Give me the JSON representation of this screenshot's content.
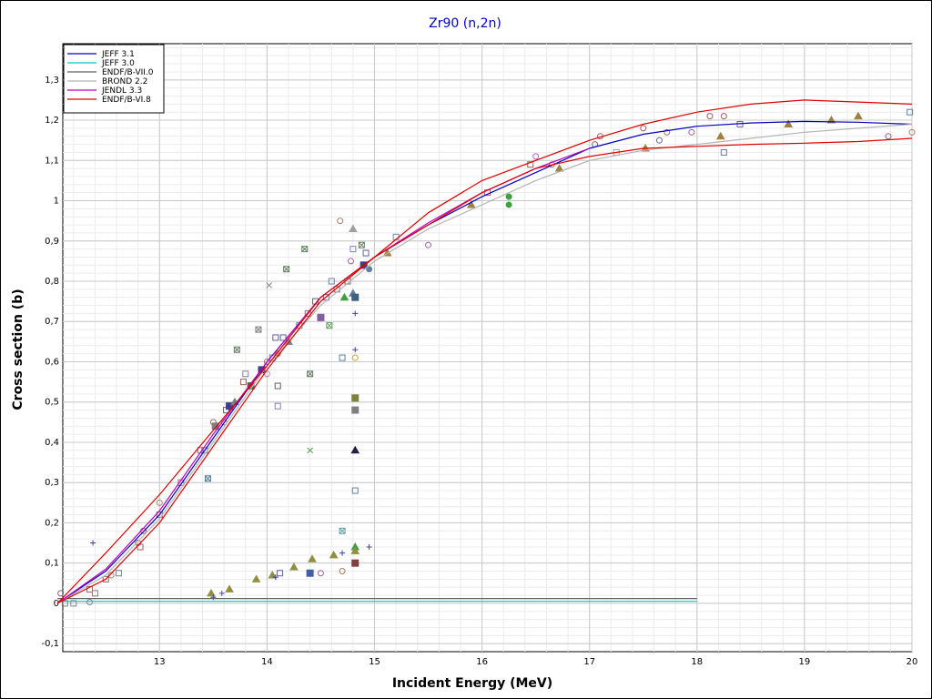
{
  "chart_data": {
    "type": "line",
    "title": "Zr90 (n,2n)",
    "xlabel": "Incident Energy (MeV)",
    "ylabel": "Cross section (b)",
    "xlim": [
      12.1,
      20
    ],
    "ylim": [
      -0.12,
      1.39
    ],
    "x_ticks": [
      "13",
      "14",
      "15",
      "16",
      "17",
      "18",
      "19",
      "20"
    ],
    "x_tick_values": [
      13,
      14,
      15,
      16,
      17,
      18,
      19,
      20
    ],
    "y_ticks": [
      "-0,1",
      "0",
      "0,1",
      "0,2",
      "0,3",
      "0,4",
      "0,5",
      "0,6",
      "0,7",
      "0,8",
      "0,9",
      "1",
      "1,1",
      "1,2",
      "1,3"
    ],
    "y_tick_values": [
      -0.1,
      0,
      0.1,
      0.2,
      0.3,
      0.4,
      0.5,
      0.6,
      0.7,
      0.8,
      0.9,
      1.0,
      1.1,
      1.2,
      1.3
    ],
    "grid": true,
    "legend_position": "top-left",
    "series": [
      {
        "name": "JEFF 3.1",
        "color": "#0000c0",
        "x": [
          12.05,
          12.5,
          13.0,
          13.5,
          14.0,
          14.5,
          15.0,
          15.5,
          16.0,
          16.5,
          17.0,
          17.5,
          18.0,
          18.5,
          19.0,
          19.5,
          20.0
        ],
        "y": [
          0.0,
          0.08,
          0.22,
          0.41,
          0.6,
          0.76,
          0.86,
          0.94,
          1.01,
          1.07,
          1.13,
          1.165,
          1.185,
          1.193,
          1.197,
          1.195,
          1.19
        ]
      },
      {
        "name": "JEFF 3.0",
        "color": "#00c8c8",
        "x": [
          12.05,
          18.0
        ],
        "y": [
          0.005,
          0.005
        ]
      },
      {
        "name": "ENDF/B-VII.0",
        "color": "#606060",
        "x": [
          12.05,
          18.0
        ],
        "y": [
          0.012,
          0.012
        ]
      },
      {
        "name": "BROND 2.2",
        "color": "#b4b4b4",
        "x": [
          12.05,
          12.5,
          13.0,
          13.5,
          14.0,
          14.5,
          15.0,
          15.5,
          16.0,
          16.5,
          17.0,
          17.5,
          18.0,
          18.5,
          19.0,
          19.5,
          20.0
        ],
        "y": [
          0.0,
          0.07,
          0.21,
          0.4,
          0.59,
          0.74,
          0.85,
          0.93,
          0.99,
          1.05,
          1.1,
          1.125,
          1.14,
          1.155,
          1.17,
          1.18,
          1.19
        ]
      },
      {
        "name": "JENDL 3.3",
        "color": "#c000c0",
        "x": [
          12.05,
          12.5,
          13.0,
          13.5,
          14.0,
          14.5,
          15.0,
          15.5,
          16.0,
          16.5,
          17.0
        ],
        "y": [
          0.0,
          0.085,
          0.23,
          0.42,
          0.6,
          0.76,
          0.86,
          0.945,
          1.02,
          1.08,
          1.13
        ]
      },
      {
        "name": "ENDF/B-VI.8",
        "color": "#e00000",
        "x": [
          12.05,
          12.5,
          13.0,
          13.5,
          14.0,
          14.5,
          15.0,
          15.5,
          16.0,
          16.5,
          17.0,
          17.5,
          18.0,
          18.5,
          19.0,
          19.5,
          20.0
        ],
        "y": [
          0.0,
          0.125,
          0.27,
          0.43,
          0.59,
          0.76,
          0.86,
          0.97,
          1.05,
          1.1,
          1.15,
          1.19,
          1.22,
          1.24,
          1.25,
          1.245,
          1.24
        ]
      },
      {
        "name": "",
        "color": "#e00000",
        "x": [
          12.05,
          12.5,
          13.0,
          13.5,
          14.0,
          14.5,
          15.0,
          15.5,
          16.0,
          16.5,
          17.0,
          17.5,
          18.0,
          18.5,
          19.0,
          19.5,
          20.0
        ],
        "y": [
          0.0,
          0.06,
          0.2,
          0.39,
          0.58,
          0.75,
          0.86,
          0.94,
          1.02,
          1.08,
          1.11,
          1.13,
          1.135,
          1.14,
          1.143,
          1.147,
          1.155
        ]
      }
    ],
    "scatter_points": [
      {
        "x": 12.08,
        "y": 0.025,
        "s": "circle",
        "c": "#806080"
      },
      {
        "x": 12.12,
        "y": 0.0,
        "s": "square",
        "c": "#808080"
      },
      {
        "x": 12.2,
        "y": 0.0,
        "s": "square",
        "c": "#8080a0"
      },
      {
        "x": 12.35,
        "y": 0.003,
        "s": "circle",
        "c": "#8080a0"
      },
      {
        "x": 12.35,
        "y": 0.035,
        "s": "square",
        "c": "#a06060"
      },
      {
        "x": 12.38,
        "y": 0.15,
        "s": "plus",
        "c": "#4040a0"
      },
      {
        "x": 12.4,
        "y": 0.025,
        "s": "square",
        "c": "#a07070"
      },
      {
        "x": 12.5,
        "y": 0.06,
        "s": "square",
        "c": "#a06060"
      },
      {
        "x": 12.55,
        "y": 0.07,
        "s": "circle",
        "c": "#a08060"
      },
      {
        "x": 12.62,
        "y": 0.075,
        "s": "square",
        "c": "#7080a0"
      },
      {
        "x": 12.8,
        "y": 0.15,
        "s": "circle",
        "c": "#a06060"
      },
      {
        "x": 12.82,
        "y": 0.14,
        "s": "square",
        "c": "#a06060"
      },
      {
        "x": 12.85,
        "y": 0.18,
        "s": "circle",
        "c": "#a06060"
      },
      {
        "x": 13.0,
        "y": 0.22,
        "s": "square",
        "c": "#a06060"
      },
      {
        "x": 13.0,
        "y": 0.25,
        "s": "circle",
        "c": "#a08060"
      },
      {
        "x": 13.2,
        "y": 0.3,
        "s": "square",
        "c": "#a06080"
      },
      {
        "x": 13.38,
        "y": 0.38,
        "s": "square",
        "c": "#a06080"
      },
      {
        "x": 13.42,
        "y": 0.38,
        "s": "square",
        "c": "#6080a0"
      },
      {
        "x": 13.45,
        "y": 0.31,
        "s": "xsquare",
        "c": "#4080a0"
      },
      {
        "x": 13.48,
        "y": 0.025,
        "s": "tri",
        "c": "#909040"
      },
      {
        "x": 13.5,
        "y": 0.015,
        "s": "plus",
        "c": "#4040a0"
      },
      {
        "x": 13.5,
        "y": 0.45,
        "s": "circle",
        "c": "#a06060"
      },
      {
        "x": 13.52,
        "y": 0.44,
        "s": "fsquare",
        "c": "#808080"
      },
      {
        "x": 13.58,
        "y": 0.025,
        "s": "plus",
        "c": "#4040a0"
      },
      {
        "x": 13.6,
        "y": 0.45,
        "s": "circle",
        "c": "#c08040"
      },
      {
        "x": 13.62,
        "y": 0.48,
        "s": "square",
        "c": "#6060a0"
      },
      {
        "x": 13.65,
        "y": 0.49,
        "s": "fsquare",
        "c": "#404080"
      },
      {
        "x": 13.65,
        "y": 0.035,
        "s": "tri",
        "c": "#909040"
      },
      {
        "x": 13.7,
        "y": 0.5,
        "s": "tri",
        "c": "#708090"
      },
      {
        "x": 13.72,
        "y": 0.63,
        "s": "xsquare",
        "c": "#608060"
      },
      {
        "x": 13.78,
        "y": 0.55,
        "s": "square",
        "c": "#a06060"
      },
      {
        "x": 13.8,
        "y": 0.57,
        "s": "square",
        "c": "#8080a0"
      },
      {
        "x": 13.85,
        "y": 0.54,
        "s": "fsquare",
        "c": "#606040"
      },
      {
        "x": 13.9,
        "y": 0.06,
        "s": "tri",
        "c": "#909040"
      },
      {
        "x": 13.92,
        "y": 0.68,
        "s": "xsquare",
        "c": "#808080"
      },
      {
        "x": 13.95,
        "y": 0.58,
        "s": "fsquare",
        "c": "#404080"
      },
      {
        "x": 14.0,
        "y": 0.6,
        "s": "circle",
        "c": "#a06080"
      },
      {
        "x": 14.0,
        "y": 0.57,
        "s": "circle",
        "c": "#c080c0"
      },
      {
        "x": 14.02,
        "y": 0.79,
        "s": "x",
        "c": "#808080"
      },
      {
        "x": 14.05,
        "y": 0.61,
        "s": "square",
        "c": "#6080a0"
      },
      {
        "x": 14.05,
        "y": 0.07,
        "s": "tri",
        "c": "#909040"
      },
      {
        "x": 14.08,
        "y": 0.66,
        "s": "square",
        "c": "#6060a0"
      },
      {
        "x": 14.08,
        "y": 0.065,
        "s": "plus",
        "c": "#4040a0"
      },
      {
        "x": 14.1,
        "y": 0.49,
        "s": "square",
        "c": "#8080c0"
      },
      {
        "x": 14.1,
        "y": 0.54,
        "s": "square",
        "c": "#606060"
      },
      {
        "x": 14.1,
        "y": 0.62,
        "s": "fcircle",
        "c": "#a08060"
      },
      {
        "x": 14.12,
        "y": 0.075,
        "s": "square",
        "c": "#6060a0"
      },
      {
        "x": 14.15,
        "y": 0.66,
        "s": "square",
        "c": "#6060a0"
      },
      {
        "x": 14.18,
        "y": 0.83,
        "s": "xsquare",
        "c": "#608060"
      },
      {
        "x": 14.2,
        "y": 0.65,
        "s": "tri",
        "c": "#708090"
      },
      {
        "x": 14.25,
        "y": 0.09,
        "s": "tri",
        "c": "#909040"
      },
      {
        "x": 14.3,
        "y": 0.69,
        "s": "square",
        "c": "#6080a0"
      },
      {
        "x": 14.35,
        "y": 0.88,
        "s": "xsquare",
        "c": "#608060"
      },
      {
        "x": 14.38,
        "y": 0.72,
        "s": "square",
        "c": "#a06080"
      },
      {
        "x": 14.4,
        "y": 0.38,
        "s": "x",
        "c": "#40a040"
      },
      {
        "x": 14.4,
        "y": 0.57,
        "s": "xsquare",
        "c": "#608060"
      },
      {
        "x": 14.4,
        "y": 0.075,
        "s": "fsquare",
        "c": "#4060a0"
      },
      {
        "x": 14.42,
        "y": 0.11,
        "s": "tri",
        "c": "#909040"
      },
      {
        "x": 14.45,
        "y": 0.75,
        "s": "square",
        "c": "#6060a0"
      },
      {
        "x": 14.5,
        "y": 0.71,
        "s": "fsquare",
        "c": "#8060a0"
      },
      {
        "x": 14.5,
        "y": 0.075,
        "s": "circle",
        "c": "#a060a0"
      },
      {
        "x": 14.55,
        "y": 0.76,
        "s": "square",
        "c": "#6060a0"
      },
      {
        "x": 14.58,
        "y": 0.69,
        "s": "xsquare",
        "c": "#60a060"
      },
      {
        "x": 14.6,
        "y": 0.8,
        "s": "square",
        "c": "#6080a0"
      },
      {
        "x": 14.62,
        "y": 0.12,
        "s": "tri",
        "c": "#909040"
      },
      {
        "x": 14.65,
        "y": 0.78,
        "s": "square",
        "c": "#a06060"
      },
      {
        "x": 14.68,
        "y": 0.95,
        "s": "circle",
        "c": "#a08060"
      },
      {
        "x": 14.7,
        "y": 0.61,
        "s": "square",
        "c": "#6080a0"
      },
      {
        "x": 14.7,
        "y": 0.18,
        "s": "xsquare",
        "c": "#60a0a0"
      },
      {
        "x": 14.7,
        "y": 0.125,
        "s": "plus",
        "c": "#4040a0"
      },
      {
        "x": 14.7,
        "y": 0.08,
        "s": "circle",
        "c": "#a08060"
      },
      {
        "x": 14.72,
        "y": 0.76,
        "s": "tri",
        "c": "#40a040"
      },
      {
        "x": 14.75,
        "y": 0.8,
        "s": "square",
        "c": "#806060"
      },
      {
        "x": 14.78,
        "y": 0.85,
        "s": "circle",
        "c": "#a060a0"
      },
      {
        "x": 14.8,
        "y": 0.93,
        "s": "tri",
        "c": "#a0a0a0"
      },
      {
        "x": 14.8,
        "y": 0.88,
        "s": "square",
        "c": "#8080c0"
      },
      {
        "x": 14.8,
        "y": 0.77,
        "s": "tri",
        "c": "#6080a0"
      },
      {
        "x": 14.82,
        "y": 0.76,
        "s": "fsquare",
        "c": "#406080"
      },
      {
        "x": 14.82,
        "y": 0.72,
        "s": "plus",
        "c": "#4040a0"
      },
      {
        "x": 14.82,
        "y": 0.63,
        "s": "plus",
        "c": "#4040a0"
      },
      {
        "x": 14.82,
        "y": 0.61,
        "s": "circle",
        "c": "#c0a040"
      },
      {
        "x": 14.82,
        "y": 0.51,
        "s": "fsquare",
        "c": "#808040"
      },
      {
        "x": 14.82,
        "y": 0.48,
        "s": "fsquare",
        "c": "#808080"
      },
      {
        "x": 14.82,
        "y": 0.38,
        "s": "tri",
        "c": "#202040"
      },
      {
        "x": 14.82,
        "y": 0.28,
        "s": "square",
        "c": "#6080a0"
      },
      {
        "x": 14.82,
        "y": 0.14,
        "s": "tri",
        "c": "#40a040"
      },
      {
        "x": 14.82,
        "y": 0.13,
        "s": "tri",
        "c": "#909040"
      },
      {
        "x": 14.82,
        "y": 0.1,
        "s": "fsquare",
        "c": "#804040"
      },
      {
        "x": 14.88,
        "y": 0.89,
        "s": "xsquare",
        "c": "#608060"
      },
      {
        "x": 14.9,
        "y": 0.84,
        "s": "fsquare",
        "c": "#404080"
      },
      {
        "x": 14.92,
        "y": 0.87,
        "s": "square",
        "c": "#6060a0"
      },
      {
        "x": 14.95,
        "y": 0.83,
        "s": "fcircle",
        "c": "#6080a0"
      },
      {
        "x": 14.95,
        "y": 0.14,
        "s": "plus",
        "c": "#4040a0"
      },
      {
        "x": 15.12,
        "y": 0.87,
        "s": "tri",
        "c": "#a08040"
      },
      {
        "x": 15.2,
        "y": 0.91,
        "s": "square",
        "c": "#8080c0"
      },
      {
        "x": 15.5,
        "y": 0.89,
        "s": "circle",
        "c": "#a060a0"
      },
      {
        "x": 15.9,
        "y": 0.99,
        "s": "tri",
        "c": "#a08040"
      },
      {
        "x": 16.05,
        "y": 1.02,
        "s": "square",
        "c": "#a06080"
      },
      {
        "x": 16.25,
        "y": 1.01,
        "s": "fcircle",
        "c": "#40a040"
      },
      {
        "x": 16.25,
        "y": 0.99,
        "s": "fcircle",
        "c": "#40a040"
      },
      {
        "x": 16.45,
        "y": 1.09,
        "s": "square",
        "c": "#a06060"
      },
      {
        "x": 16.5,
        "y": 1.11,
        "s": "circle",
        "c": "#c060c0"
      },
      {
        "x": 16.65,
        "y": 1.09,
        "s": "circle",
        "c": "#a08060"
      },
      {
        "x": 16.72,
        "y": 1.08,
        "s": "tri",
        "c": "#a08040"
      },
      {
        "x": 17.05,
        "y": 1.14,
        "s": "circle",
        "c": "#806080"
      },
      {
        "x": 17.1,
        "y": 1.16,
        "s": "circle",
        "c": "#a06060"
      },
      {
        "x": 17.25,
        "y": 1.12,
        "s": "square",
        "c": "#a0a0a0"
      },
      {
        "x": 17.5,
        "y": 1.18,
        "s": "circle",
        "c": "#a06060"
      },
      {
        "x": 17.52,
        "y": 1.13,
        "s": "tri",
        "c": "#a08040"
      },
      {
        "x": 17.65,
        "y": 1.15,
        "s": "circle",
        "c": "#6060a0"
      },
      {
        "x": 17.72,
        "y": 1.17,
        "s": "circle",
        "c": "#a06080"
      },
      {
        "x": 17.95,
        "y": 1.17,
        "s": "circle",
        "c": "#a06080"
      },
      {
        "x": 18.12,
        "y": 1.21,
        "s": "circle",
        "c": "#a06060"
      },
      {
        "x": 18.25,
        "y": 1.21,
        "s": "circle",
        "c": "#a06060"
      },
      {
        "x": 18.22,
        "y": 1.16,
        "s": "tri",
        "c": "#a08040"
      },
      {
        "x": 18.25,
        "y": 1.12,
        "s": "square",
        "c": "#6080a0"
      },
      {
        "x": 18.4,
        "y": 1.19,
        "s": "square",
        "c": "#8060a0"
      },
      {
        "x": 18.85,
        "y": 1.19,
        "s": "tri",
        "c": "#a08040"
      },
      {
        "x": 19.25,
        "y": 1.2,
        "s": "tri",
        "c": "#a08040"
      },
      {
        "x": 19.5,
        "y": 1.21,
        "s": "tri",
        "c": "#a08040"
      },
      {
        "x": 19.78,
        "y": 1.16,
        "s": "circle",
        "c": "#a06080"
      },
      {
        "x": 19.98,
        "y": 1.22,
        "s": "square",
        "c": "#6080a0"
      },
      {
        "x": 20.0,
        "y": 1.17,
        "s": "circle",
        "c": "#a08060"
      }
    ]
  }
}
